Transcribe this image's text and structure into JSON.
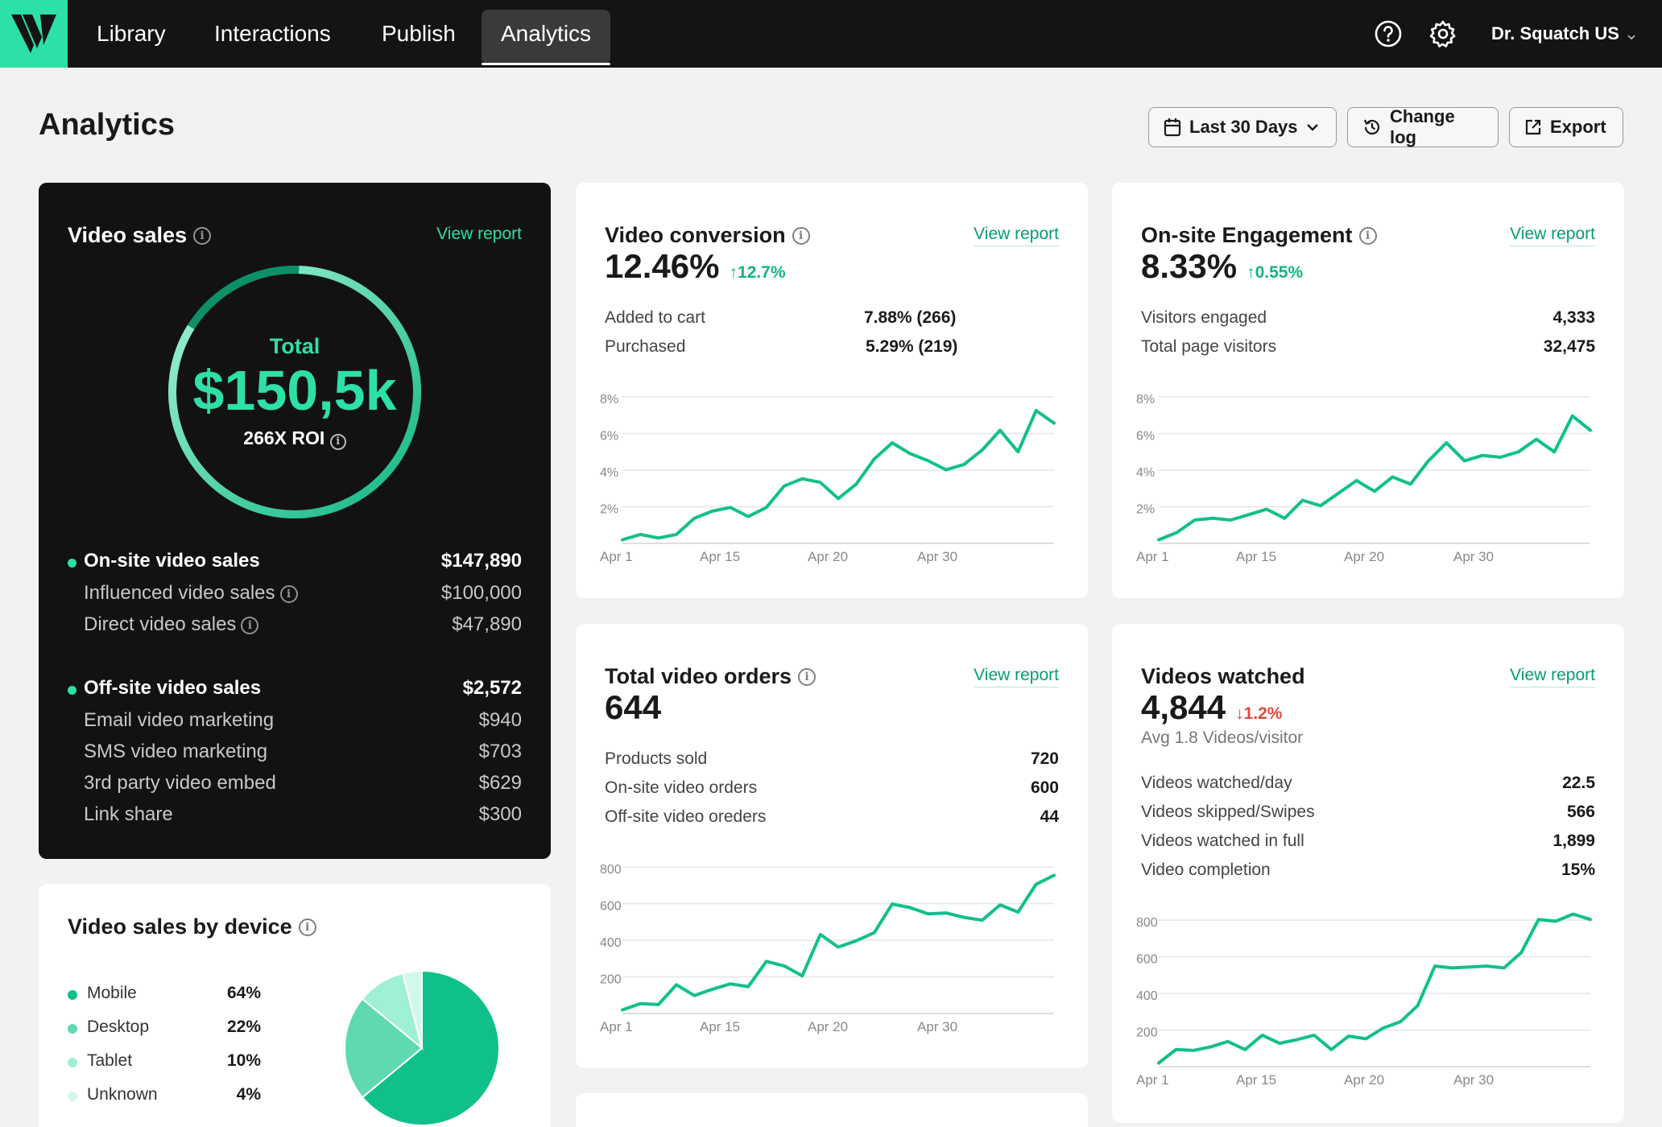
{
  "nav": {
    "items": [
      "Library",
      "Interactions",
      "Publish",
      "Analytics"
    ],
    "active": "Analytics",
    "account": "Dr. Squatch US",
    "help_icon": "help-circle-icon",
    "settings_icon": "gear-icon"
  },
  "header": {
    "title": "Analytics",
    "date_range": "Last 30 Days",
    "change_log": "Change log",
    "export": "Export"
  },
  "colors": {
    "accent": "#2de0a8",
    "accent_dark": "#079c73",
    "negative": "#e4483b",
    "dark_card": "#121212"
  },
  "video_sales": {
    "title": "Video sales",
    "view_report": "View report",
    "total_label": "Total",
    "total": "$150,5k",
    "roi": "266X ROI",
    "onsite": {
      "label": "On-site video sales",
      "value": "$147,890",
      "items": [
        {
          "label": "Influenced video sales",
          "value": "$100,000"
        },
        {
          "label": "Direct video sales",
          "value": "$47,890"
        }
      ]
    },
    "offsite": {
      "label": "Off-site video sales",
      "value": "$2,572",
      "items": [
        {
          "label": "Email video marketing",
          "value": "$940"
        },
        {
          "label": "SMS video marketing",
          "value": "$703"
        },
        {
          "label": "3rd party video embed",
          "value": "$629"
        },
        {
          "label": "Link share",
          "value": "$300"
        }
      ]
    }
  },
  "video_conversion": {
    "title": "Video conversion",
    "view_report": "View report",
    "value": "12.46%",
    "delta": "12.7%",
    "rows": [
      {
        "label": "Added to cart",
        "value": "7.88% (266)"
      },
      {
        "label": "Purchased",
        "value": "5.29% (219)"
      }
    ]
  },
  "engagement": {
    "title": "On-site Engagement",
    "view_report": "View report",
    "value": "8.33%",
    "delta": "0.55%",
    "rows": [
      {
        "label": "Visitors engaged",
        "value": "4,333"
      },
      {
        "label": "Total page visitors",
        "value": "32,475"
      }
    ]
  },
  "orders": {
    "title": "Total video orders",
    "view_report": "View report",
    "value": "644",
    "rows": [
      {
        "label": "Products sold",
        "value": "720"
      },
      {
        "label": "On-site video orders",
        "value": "600"
      },
      {
        "label": "Off-site video oreders",
        "value": "44"
      }
    ]
  },
  "watched": {
    "title": "Videos watched",
    "view_report": "View report",
    "value": "4,844",
    "delta": "1.2%",
    "sub": "Avg 1.8 Videos/visitor",
    "rows": [
      {
        "label": "Videos watched/day",
        "value": "22.5"
      },
      {
        "label": "Videos skipped/Swipes",
        "value": "566"
      },
      {
        "label": "Videos watched in full",
        "value": "1,899"
      },
      {
        "label": "Video completion",
        "value": "15%"
      }
    ]
  },
  "device": {
    "title": "Video sales by device",
    "legend": [
      {
        "label": "Mobile",
        "value": "64%",
        "color": "#10c08a"
      },
      {
        "label": "Desktop",
        "value": "22%",
        "color": "#5fd9b0"
      },
      {
        "label": "Tablet",
        "value": "10%",
        "color": "#9ff0d4"
      },
      {
        "label": "Unknown",
        "value": "4%",
        "color": "#d2f8ea"
      }
    ]
  },
  "chart_data": [
    {
      "type": "line",
      "name": "conversion",
      "x_ticks": [
        "Apr 1",
        "Apr 15",
        "Apr 20",
        "Apr 30"
      ],
      "y_ticks": [
        "8%",
        "6%",
        "4%",
        "2%"
      ],
      "ylim": [
        0,
        8
      ],
      "series": [
        {
          "values": [
            0.2,
            0.5,
            0.3,
            0.5,
            1.4,
            1.8,
            2.0,
            1.5,
            2.0,
            3.2,
            3.6,
            3.4,
            2.5,
            3.3,
            4.7,
            5.6,
            5.0,
            4.6,
            4.1,
            4.4,
            5.2,
            6.3,
            5.1,
            7.4,
            6.7
          ]
        }
      ]
    },
    {
      "type": "line",
      "name": "engagement",
      "x_ticks": [
        "Apr 1",
        "Apr 15",
        "Apr 20",
        "Apr 30"
      ],
      "y_ticks": [
        "8%",
        "6%",
        "4%",
        "2%"
      ],
      "ylim": [
        0,
        8
      ],
      "series": [
        {
          "values": [
            0.2,
            0.6,
            1.3,
            1.4,
            1.3,
            1.6,
            1.9,
            1.4,
            2.4,
            2.1,
            2.8,
            3.5,
            2.9,
            3.7,
            3.3,
            4.6,
            5.6,
            4.6,
            4.9,
            4.8,
            5.1,
            5.8,
            5.1,
            7.1,
            6.3
          ]
        }
      ]
    },
    {
      "type": "line",
      "name": "orders",
      "x_ticks": [
        "Apr 1",
        "Apr 15",
        "Apr 20",
        "Apr 30"
      ],
      "y_ticks": [
        "800",
        "600",
        "400",
        "200"
      ],
      "ylim": [
        0,
        800
      ],
      "series": [
        {
          "values": [
            20,
            55,
            50,
            160,
            100,
            135,
            165,
            150,
            290,
            265,
            210,
            440,
            370,
            405,
            450,
            610,
            590,
            555,
            560,
            535,
            520,
            605,
            565,
            720,
            770
          ]
        }
      ]
    },
    {
      "type": "line",
      "name": "watched",
      "x_ticks": [
        "Apr 1",
        "Apr 15",
        "Apr 20",
        "Apr 30"
      ],
      "y_ticks": [
        "800",
        "600",
        "400",
        "200"
      ],
      "ylim": [
        0,
        800
      ],
      "series": [
        {
          "values": [
            20,
            95,
            90,
            110,
            140,
            95,
            175,
            130,
            150,
            175,
            95,
            170,
            155,
            215,
            250,
            340,
            560,
            550,
            555,
            560,
            550,
            635,
            820,
            810,
            850,
            820
          ]
        }
      ]
    },
    {
      "type": "pie",
      "name": "device",
      "categories": [
        "Mobile",
        "Desktop",
        "Tablet",
        "Unknown"
      ],
      "values": [
        64,
        22,
        10,
        4
      ]
    }
  ]
}
